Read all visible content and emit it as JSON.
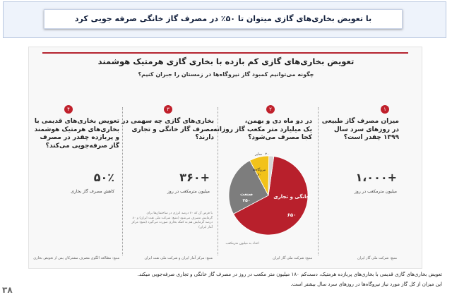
{
  "header": {
    "title": "با تعویض بخاری‌های گازی میتوان تا ۵۰٪ در مصرف گاز خانگی صرفه جویی کرد"
  },
  "infographic": {
    "title": "تعویض بخاری‌های گازی کم بازده با بخاری گازی هرمتیک هوشمند",
    "subtitle": "چگونه می‌توانیم کمبود گاز نیروگاه‌ها در زمستان را جبران کنیم؟",
    "columns": [
      {
        "badge": "۱",
        "question": [
          "میزان مصرف گاز طبیعی",
          "در روزهای سرد سال",
          "۱۳۹۹ چقدر است؟"
        ],
        "big_value": "۱،۰۰۰+",
        "unit": "میلیون مترمکعب در روز",
        "source": "منبع: شرکت ملی گاز ایران"
      },
      {
        "badge": "۲",
        "question": [
          "در دو ماه دی و بهمن،",
          "یک میلیارد متر مکعب گاز روزانه",
          "کجا مصرف می‌شود؟"
        ],
        "source": "منبع: شرکت ملی گاز ایران",
        "pie_note": "اعداد به میلیون مترمکعب"
      },
      {
        "badge": "۳",
        "question": [
          "بخاری‌های گازی چه سهمی در",
          "مصرف گاز خانگی و تجاری",
          "دارند؟"
        ],
        "big_value": "۳۶۰+",
        "unit": "میلیون مترمکعب در روز",
        "note": [
          "با فرض آن که ۷۰ درصد انرژی در ساختمان‌ها برای",
          "گرمایش مصرف می‌شود (منبع: شرکت ملی نفت ایران) و ۸۰",
          "درصد گرمایش هم به کمک بخاری صورت می‌گیرد (منبع: مرکز",
          "آمار ایران)"
        ],
        "source": "منبع: مرکز آمار ایران و شرکت ملی نفت ایران"
      },
      {
        "badge": "۴",
        "question": [
          "تعویض بخاری‌های قدیمی با",
          "بخاری‌های هرمتیک هوشمند",
          "و پربازده چقدر در مصرف",
          "گاز صرفه‌جویی می‌کند؟"
        ],
        "big_value": "۵۰٪",
        "unit": "کاهش مصرف گاز بخاری",
        "source": "منبع: مطالعه الگوی مصرف مشترکان پس از تعویض بخاری"
      }
    ]
  },
  "chart_data": {
    "type": "pie",
    "title": "",
    "slices": [
      {
        "label": "خانگی و تجاری",
        "value": 650,
        "value_label": "۶۵۰",
        "color": "#b8202c"
      },
      {
        "label": "صنعت",
        "value": 250,
        "value_label": "۲۵۰",
        "color": "#7d7d7d"
      },
      {
        "label": "نیروگاه‌ها",
        "value": 80,
        "value_label": "۸۰",
        "color": "#f2c21a"
      },
      {
        "label": "سایر",
        "value": 20,
        "value_label": "۲۰",
        "color": "#d6d6d6"
      }
    ]
  },
  "footer": {
    "line1": "تعویض بخاری‌های گازی قدیمی با بخاری‌های پربازده هرمتیک، دست‌کم ۱۸۰ میلیون متر مکعب در روز در مصرف گاز خانگی و تجاری صرفه‌جویی میکند.",
    "line2": "این میزان از کل گاز مورد نیاز نیروگاه‌ها در روزهای سرد سال بیشتر است."
  },
  "page_number": "۳۸"
}
